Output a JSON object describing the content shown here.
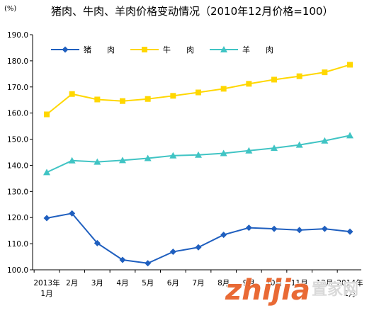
{
  "chart_data": {
    "type": "line",
    "title": "猪肉、牛肉、羊肉价格变动情况（2010年12月价格=100）",
    "ylabel": "(%)",
    "xlabel": "",
    "ylim": [
      100,
      190
    ],
    "yticks": [
      "100.0",
      "110.0",
      "120.0",
      "130.0",
      "140.0",
      "150.0",
      "160.0",
      "170.0",
      "180.0",
      "190.0"
    ],
    "categories": [
      "2013年1月",
      "2月",
      "3月",
      "4月",
      "5月",
      "6月",
      "7月",
      "8月",
      "9月",
      "10月",
      "11月",
      "12月",
      "2014年1月"
    ],
    "category_ticks": [
      {
        "line1": "2013年",
        "line2": "1月"
      },
      {
        "line1": "2月",
        "line2": ""
      },
      {
        "line1": "3月",
        "line2": ""
      },
      {
        "line1": "4月",
        "line2": ""
      },
      {
        "line1": "5月",
        "line2": ""
      },
      {
        "line1": "6月",
        "line2": ""
      },
      {
        "line1": "7月",
        "line2": ""
      },
      {
        "line1": "8月",
        "line2": ""
      },
      {
        "line1": "9月",
        "line2": ""
      },
      {
        "line1": "10月",
        "line2": ""
      },
      {
        "line1": "11月",
        "line2": ""
      },
      {
        "line1": "12月",
        "line2": ""
      },
      {
        "line1": "2014年",
        "line2": "1月"
      }
    ],
    "series": [
      {
        "name": "猪　　肉",
        "color": "#1f5fbf",
        "marker": "diamond",
        "values": [
          119.8,
          121.6,
          110.2,
          103.8,
          102.5,
          106.9,
          108.6,
          113.4,
          116.1,
          115.7,
          115.2,
          115.7,
          114.6
        ]
      },
      {
        "name": "牛　　肉",
        "color": "#ffd700",
        "marker": "square",
        "values": [
          159.5,
          167.3,
          165.2,
          164.6,
          165.4,
          166.6,
          167.9,
          169.3,
          171.2,
          172.8,
          174.1,
          175.6,
          178.5
        ]
      },
      {
        "name": "羊　　肉",
        "color": "#40c4c4",
        "marker": "triangle",
        "values": [
          137.3,
          141.8,
          141.3,
          141.9,
          142.7,
          143.7,
          144.0,
          144.6,
          145.6,
          146.6,
          147.8,
          149.4,
          151.4
        ]
      }
    ],
    "legend_position": "top-left",
    "grid": false
  },
  "watermark": {
    "text": "zhijia",
    "sub_text": "置家网"
  }
}
